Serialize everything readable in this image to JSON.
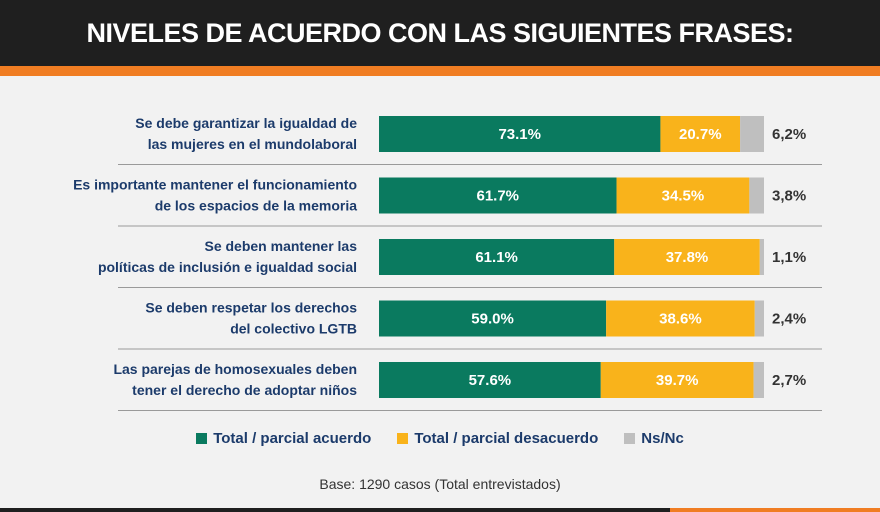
{
  "header": {
    "title": "NIVELES DE ACUERDO CON LAS SIGUIENTES FRASES:"
  },
  "colors": {
    "acuerdo": "#0a7a5f",
    "desacuerdo": "#f9b31b",
    "nsnc": "#bfbfbf"
  },
  "chart_data": {
    "type": "bar",
    "orientation": "horizontal",
    "stacked": true,
    "categories": [
      [
        "Se debe garantizar la igualdad de",
        "las mujeres en el mundolaboral"
      ],
      [
        "Es importante mantener el funcionamiento",
        "de los espacios de la memoria"
      ],
      [
        "Se deben mantener las",
        "políticas de inclusión e igualdad social"
      ],
      [
        "Se deben respetar los derechos",
        "del colectivo LGTB"
      ],
      [
        "Las parejas de homosexuales deben",
        "tener el derecho de adoptar niños"
      ]
    ],
    "series": [
      {
        "name": "Total / parcial acuerdo",
        "values": [
          73.1,
          61.7,
          61.1,
          59.0,
          57.6
        ],
        "labels": [
          "73.1%",
          "61.7%",
          "61.1%",
          "59.0%",
          "57.6%"
        ]
      },
      {
        "name": "Total / parcial desacuerdo",
        "values": [
          20.7,
          34.5,
          37.8,
          38.6,
          39.7
        ],
        "labels": [
          "20.7%",
          "34.5%",
          "37.8%",
          "38.6%",
          "39.7%"
        ]
      },
      {
        "name": "Ns/Nc",
        "values": [
          6.2,
          3.8,
          1.1,
          2.4,
          2.7
        ],
        "labels": [
          "6,2%",
          "3,8%",
          "1,1%",
          "2,4%",
          "2,7%"
        ]
      }
    ],
    "xlim": [
      0,
      100
    ],
    "legend": "bottom"
  },
  "footer": {
    "base": "Base: 1290 casos (Total entrevistados)"
  }
}
